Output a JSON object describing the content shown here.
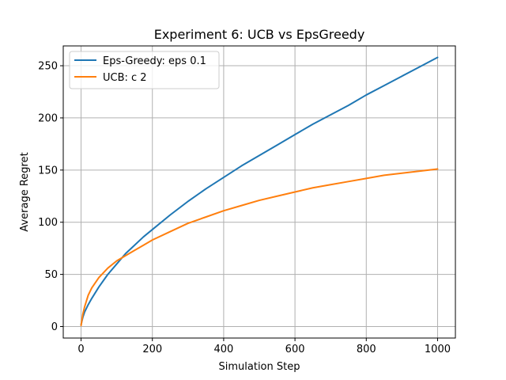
{
  "chart_data": {
    "type": "line",
    "title": "Experiment 6: UCB vs EpsGreedy",
    "xlabel": "Simulation Step",
    "ylabel": "Average Regret",
    "xlim": [
      -50,
      1050
    ],
    "ylim": [
      -11,
      269
    ],
    "xticks": [
      0,
      200,
      400,
      600,
      800,
      1000
    ],
    "yticks": [
      0,
      50,
      100,
      150,
      200,
      250
    ],
    "grid": true,
    "legend_position": "top-left",
    "series": [
      {
        "name": "Eps-Greedy: eps 0.1",
        "color": "#1f77b4",
        "x": [
          0,
          5,
          10,
          20,
          30,
          50,
          75,
          100,
          125,
          150,
          175,
          200,
          250,
          300,
          350,
          400,
          450,
          500,
          550,
          600,
          650,
          700,
          750,
          800,
          850,
          900,
          950,
          1000
        ],
        "y": [
          2,
          9,
          14,
          21,
          27,
          38,
          50,
          60,
          70,
          78,
          86,
          93,
          107,
          120,
          132,
          143,
          154,
          164,
          174,
          184,
          194,
          203,
          212,
          222,
          231,
          240,
          249,
          258
        ]
      },
      {
        "name": "UCB: c 2",
        "color": "#ff7f0e",
        "x": [
          0,
          5,
          10,
          20,
          30,
          50,
          75,
          100,
          125,
          150,
          175,
          200,
          250,
          300,
          350,
          400,
          450,
          500,
          550,
          600,
          650,
          700,
          750,
          800,
          850,
          900,
          950,
          1000
        ],
        "y": [
          1,
          12,
          19,
          30,
          37,
          47,
          56,
          63,
          68,
          73,
          78,
          83,
          91,
          99,
          105,
          111,
          116,
          121,
          125,
          129,
          133,
          136,
          139,
          142,
          145,
          147,
          149,
          151
        ]
      }
    ]
  }
}
